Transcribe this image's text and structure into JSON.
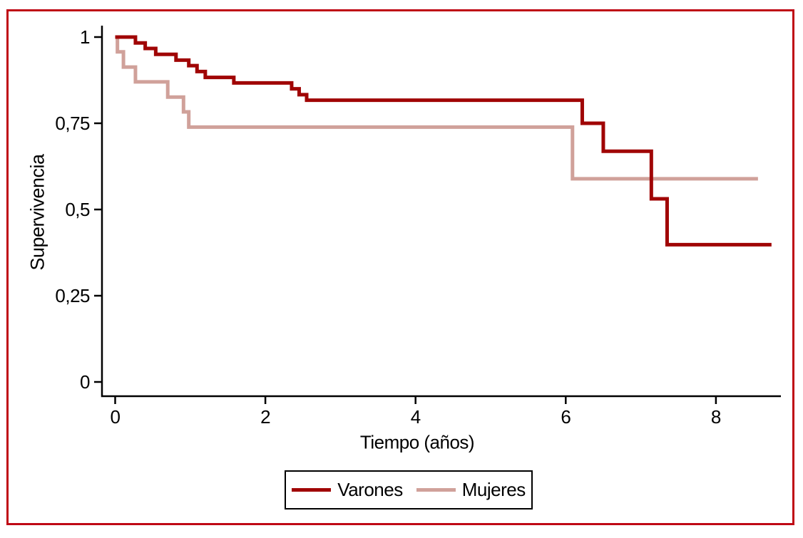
{
  "figure": {
    "background_color": "#ffffff",
    "border_color": "#bf0815",
    "axis_color": "#000000"
  },
  "chart_data": {
    "type": "line",
    "style": "kaplan-meier-step",
    "title": "",
    "xlabel": "Tiempo (años)",
    "ylabel": "Supervivencia",
    "xlim": [
      0,
      8.9
    ],
    "ylim": [
      0,
      1
    ],
    "grid": false,
    "legend_position": "bottom-center-boxed",
    "x_ticks": [
      {
        "value": 0,
        "label": "0"
      },
      {
        "value": 2,
        "label": "2"
      },
      {
        "value": 4,
        "label": "4"
      },
      {
        "value": 6,
        "label": "6"
      },
      {
        "value": 8,
        "label": "8"
      }
    ],
    "y_ticks": [
      {
        "value": 0,
        "label": "0"
      },
      {
        "value": 0.25,
        "label": "0,25"
      },
      {
        "value": 0.5,
        "label": "0,5"
      },
      {
        "value": 0.75,
        "label": "0,75"
      },
      {
        "value": 1,
        "label": "1"
      }
    ],
    "series": [
      {
        "name": "Varones",
        "color": "#a00505",
        "line_width": 5,
        "steps": [
          [
            0,
            1.0
          ],
          [
            0.27,
            0.983
          ],
          [
            0.4,
            0.967
          ],
          [
            0.54,
            0.95
          ],
          [
            0.81,
            0.933
          ],
          [
            0.98,
            0.917
          ],
          [
            1.09,
            0.9
          ],
          [
            1.2,
            0.883
          ],
          [
            1.58,
            0.867
          ],
          [
            2.35,
            0.85
          ],
          [
            2.45,
            0.833
          ],
          [
            2.55,
            0.817
          ],
          [
            6.22,
            0.75
          ],
          [
            6.5,
            0.669
          ],
          [
            7.14,
            0.531
          ],
          [
            7.35,
            0.398
          ]
        ],
        "end_time": 8.74
      },
      {
        "name": "Mujeres",
        "color": "#d0a19a",
        "line_width": 5,
        "steps": [
          [
            0,
            1.0
          ],
          [
            0.03,
            0.957
          ],
          [
            0.11,
            0.913
          ],
          [
            0.27,
            0.87
          ],
          [
            0.7,
            0.826
          ],
          [
            0.91,
            0.783
          ],
          [
            0.98,
            0.739
          ],
          [
            6.09,
            0.589
          ]
        ],
        "end_time": 8.56
      }
    ]
  }
}
